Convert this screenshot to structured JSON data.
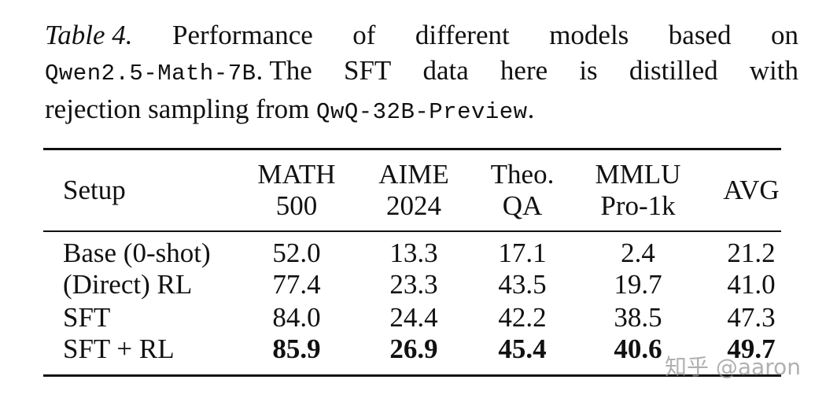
{
  "caption": {
    "label": "Table 4.",
    "line1_words": [
      "Performance",
      "of",
      "different",
      "models",
      "based",
      "on"
    ],
    "line2_code": "Qwen2.5-Math-7B",
    "line2_words": [
      ". The",
      "SFT",
      "data",
      "here",
      "is",
      "distilled",
      "with"
    ],
    "line3_text": "rejection sampling from ",
    "line3_code": "QwQ-32B-Preview",
    "line3_end": "."
  },
  "table": {
    "headers": [
      {
        "line1": "Setup",
        "line2": ""
      },
      {
        "line1": "MATH",
        "line2": "500"
      },
      {
        "line1": "AIME",
        "line2": "2024"
      },
      {
        "line1": "Theo.",
        "line2": "QA"
      },
      {
        "line1": "MMLU",
        "line2": "Pro-1k"
      },
      {
        "line1": "AVG",
        "line2": ""
      }
    ],
    "rows": [
      {
        "setup": "Base (0-shot)",
        "values": [
          "52.0",
          "13.3",
          "17.1",
          "2.4",
          "21.2"
        ],
        "bold": false
      },
      {
        "setup": "(Direct) RL",
        "values": [
          "77.4",
          "23.3",
          "43.5",
          "19.7",
          "41.0"
        ],
        "bold": false
      },
      {
        "setup": "SFT",
        "values": [
          "84.0",
          "24.4",
          "42.2",
          "38.5",
          "47.3"
        ],
        "bold": false
      },
      {
        "setup": "SFT + RL",
        "values": [
          "85.9",
          "26.9",
          "45.4",
          "40.6",
          "49.7"
        ],
        "bold": true
      }
    ]
  },
  "watermark": "知乎 @aaron"
}
